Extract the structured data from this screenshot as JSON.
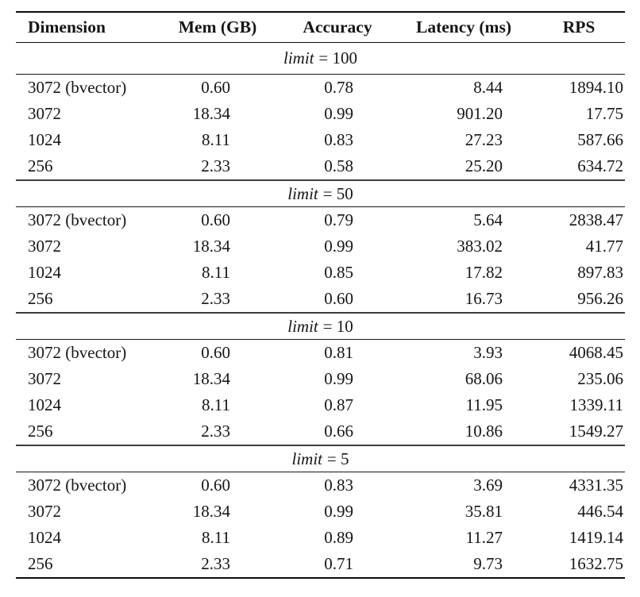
{
  "colors": {
    "background": "#ffffff",
    "text": "#151515",
    "rule_heavy": "#0a0a0a",
    "rule_section_separator": "#3d3d3d"
  },
  "table": {
    "columns": [
      "Dimension",
      "Mem (GB)",
      "Accuracy",
      "Latency (ms)",
      "RPS"
    ],
    "sections": [
      {
        "limit_word": "limit",
        "limit_eq": "= 100",
        "rows": [
          [
            "3072 (bvector)",
            "0.60",
            "0.78",
            "8.44",
            "1894.10"
          ],
          [
            "3072",
            "18.34",
            "0.99",
            "901.20",
            "17.75"
          ],
          [
            "1024",
            "8.11",
            "0.83",
            "27.23",
            "587.66"
          ],
          [
            "256",
            "2.33",
            "0.58",
            "25.20",
            "634.72"
          ]
        ]
      },
      {
        "limit_word": "limit",
        "limit_eq": "= 50",
        "rows": [
          [
            "3072 (bvector)",
            "0.60",
            "0.79",
            "5.64",
            "2838.47"
          ],
          [
            "3072",
            "18.34",
            "0.99",
            "383.02",
            "41.77"
          ],
          [
            "1024",
            "8.11",
            "0.85",
            "17.82",
            "897.83"
          ],
          [
            "256",
            "2.33",
            "0.60",
            "16.73",
            "956.26"
          ]
        ]
      },
      {
        "limit_word": "limit",
        "limit_eq": "= 10",
        "rows": [
          [
            "3072 (bvector)",
            "0.60",
            "0.81",
            "3.93",
            "4068.45"
          ],
          [
            "3072",
            "18.34",
            "0.99",
            "68.06",
            "235.06"
          ],
          [
            "1024",
            "8.11",
            "0.87",
            "11.95",
            "1339.11"
          ],
          [
            "256",
            "2.33",
            "0.66",
            "10.86",
            "1549.27"
          ]
        ]
      },
      {
        "limit_word": "limit",
        "limit_eq": "= 5",
        "rows": [
          [
            "3072 (bvector)",
            "0.60",
            "0.83",
            "3.69",
            "4331.35"
          ],
          [
            "3072",
            "18.34",
            "0.99",
            "35.81",
            "446.54"
          ],
          [
            "1024",
            "8.11",
            "0.89",
            "11.27",
            "1419.14"
          ],
          [
            "256",
            "2.33",
            "0.71",
            "9.73",
            "1632.75"
          ]
        ]
      }
    ]
  }
}
